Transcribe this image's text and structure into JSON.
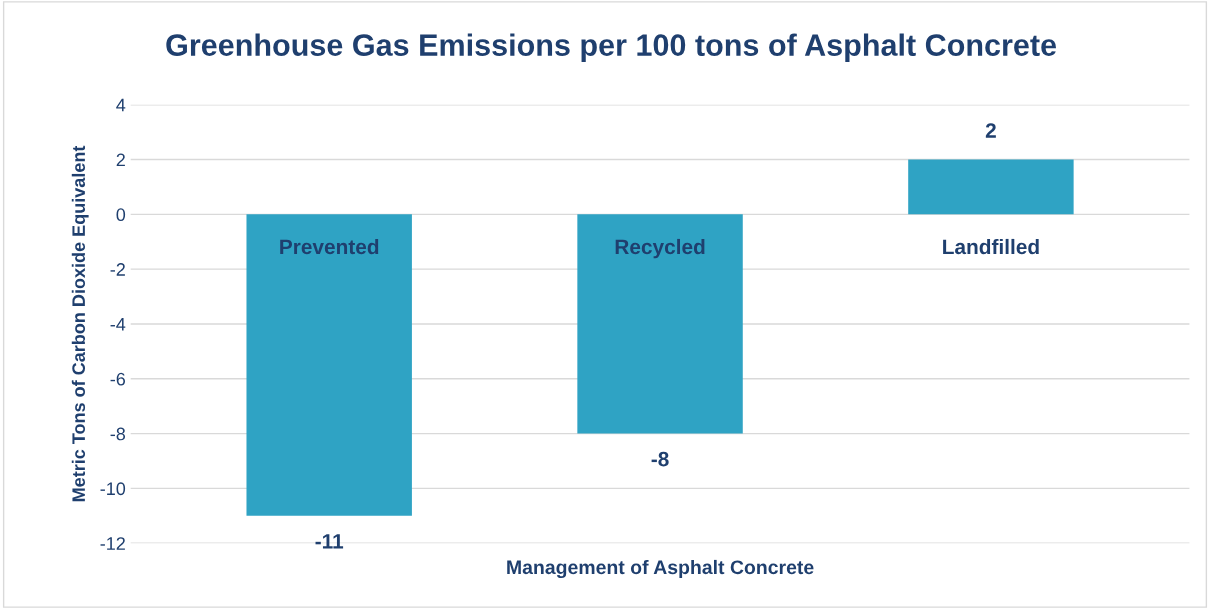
{
  "chart_data": {
    "type": "bar",
    "title": "Greenhouse Gas Emissions per 100 tons of Asphalt Concrete",
    "xlabel": "Management of Asphalt Concrete",
    "ylabel": "Metric Tons of Carbon Dioxide Equivalent",
    "categories": [
      "Prevented",
      "Recycled",
      "Landfilled"
    ],
    "values": [
      -11,
      -8,
      2
    ],
    "color": "#2fa3c4",
    "ylim": [
      -12,
      4
    ],
    "yticks": [
      -12,
      -10,
      -8,
      -6,
      -4,
      -2,
      0,
      2,
      4
    ],
    "grid": "y",
    "data_labels": true,
    "tick_labels": "y"
  }
}
